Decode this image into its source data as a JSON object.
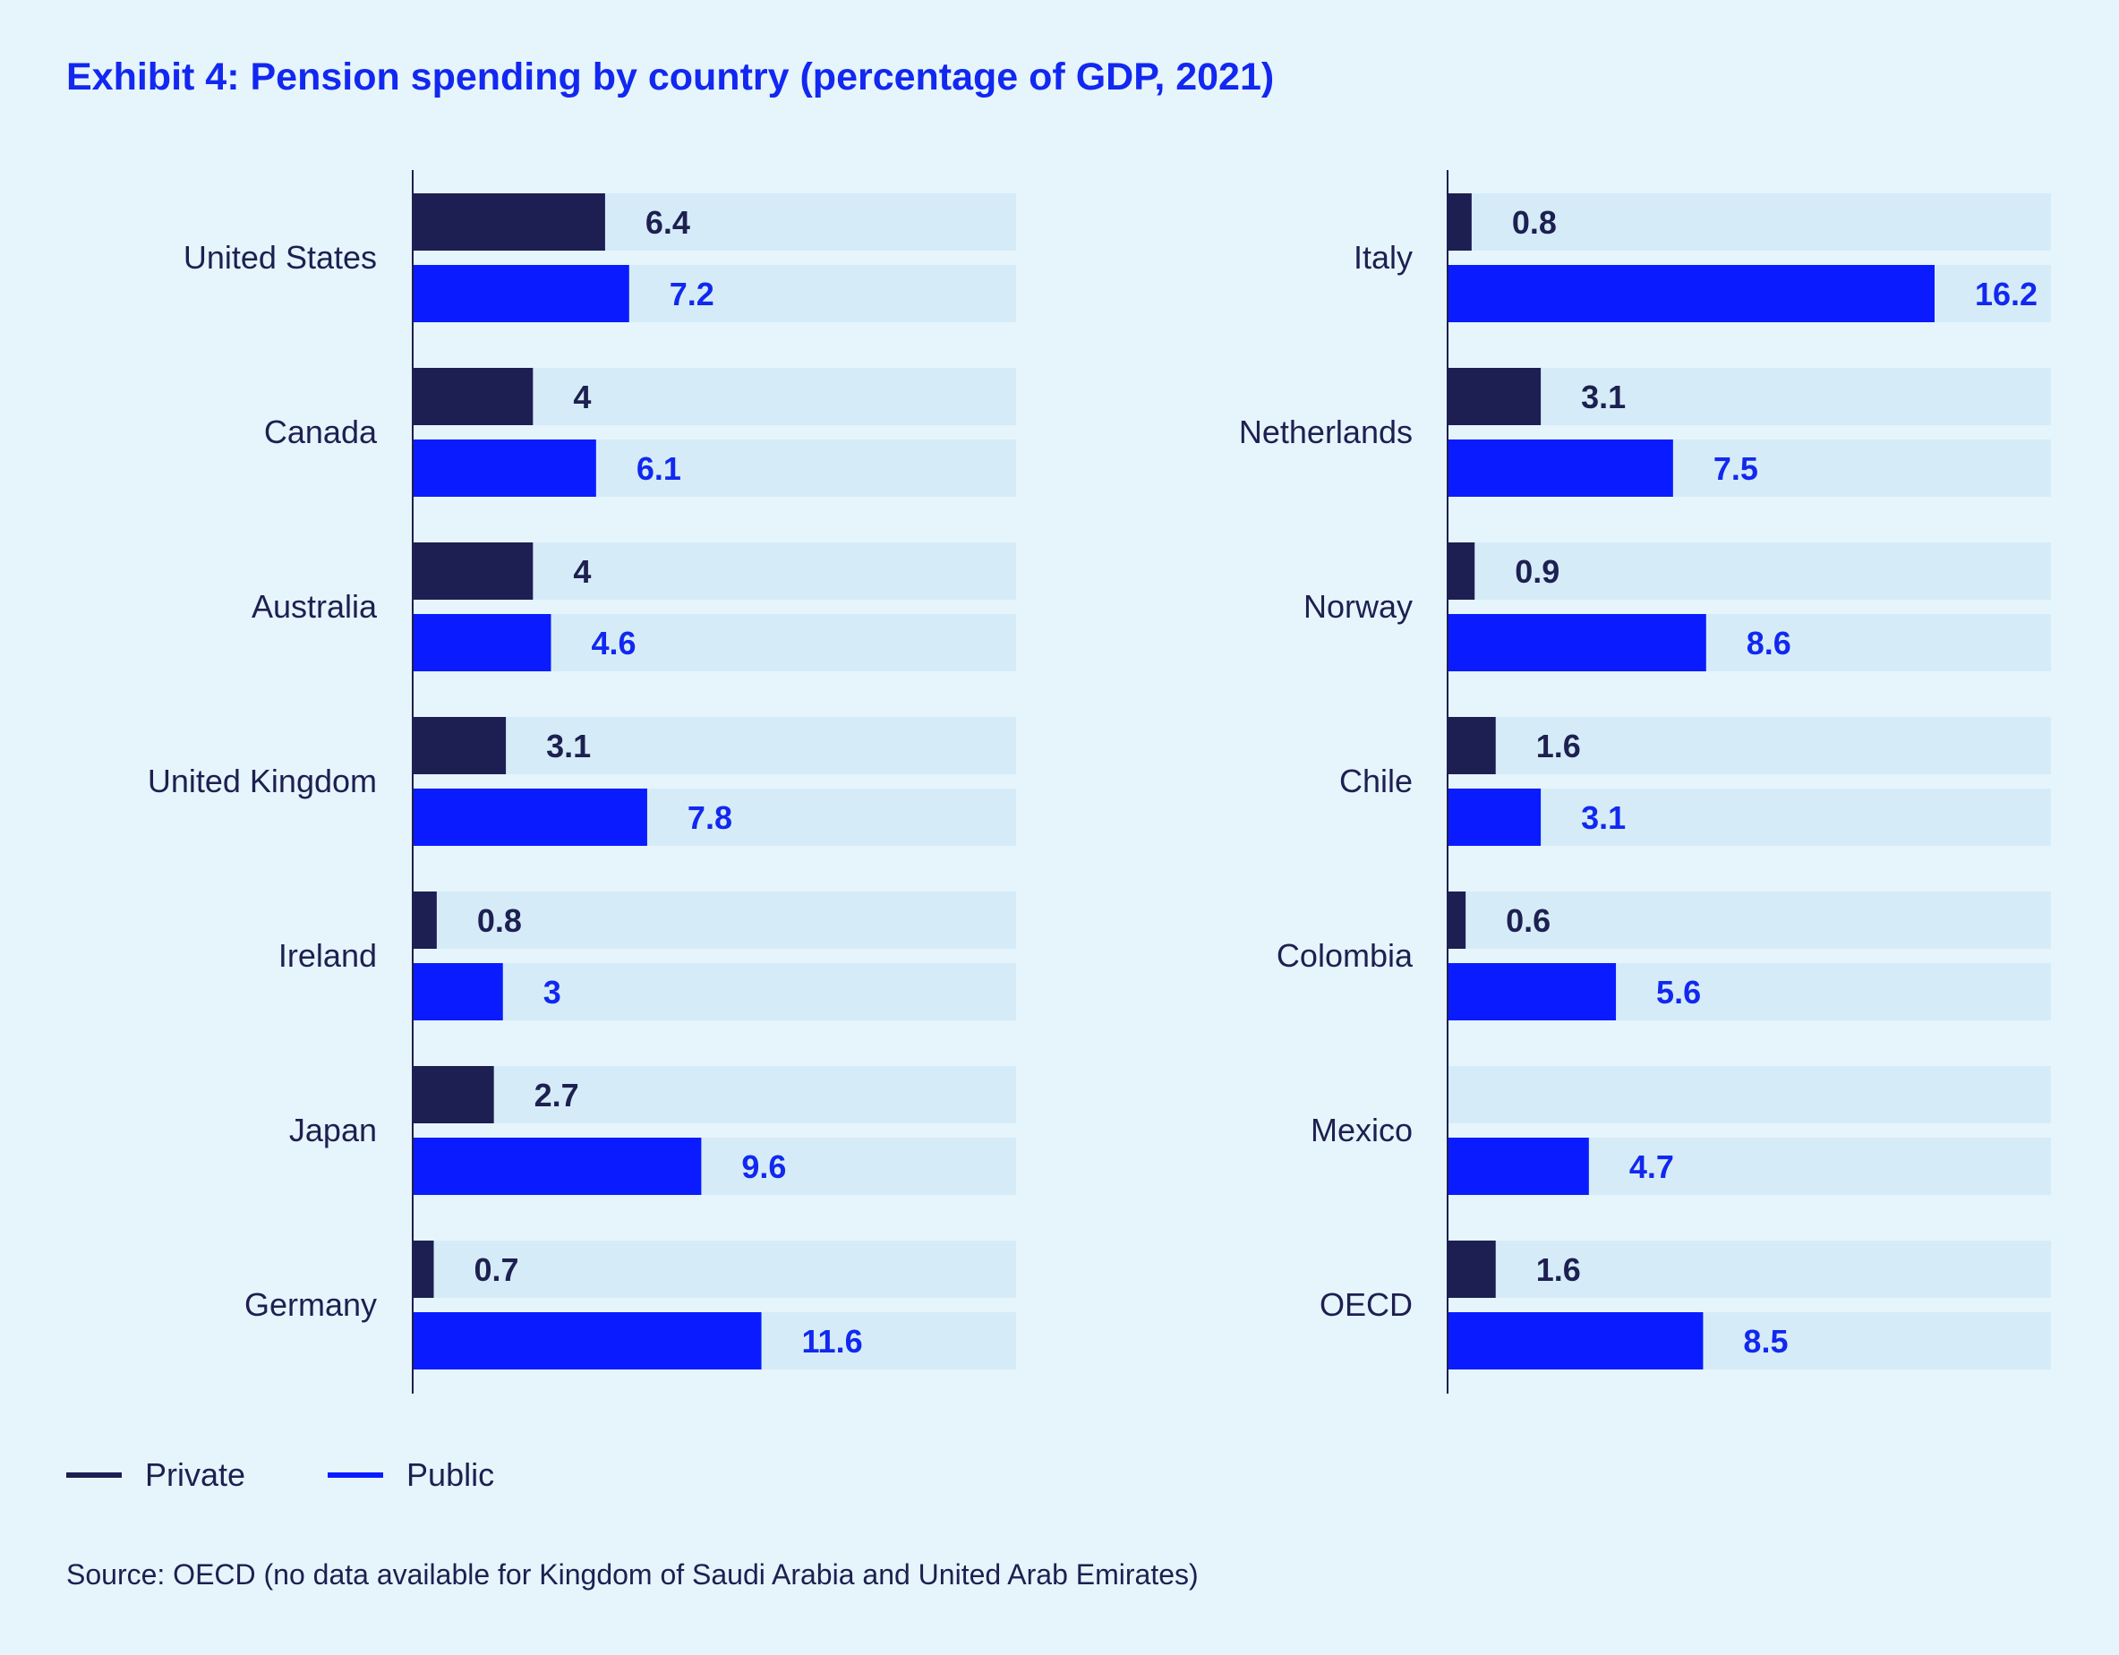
{
  "chart_data": {
    "type": "bar",
    "orientation": "horizontal",
    "title": "Exhibit 4: Pension spending by country (percentage of GDP, 2021)",
    "xlim": [
      0,
      18
    ],
    "colors": {
      "private": "#1d1f52",
      "public": "#0a1cff",
      "track": "#d5ecf8",
      "background": "#e6f4fc"
    },
    "panels": [
      {
        "categories": [
          "United States",
          "Canada",
          "Australia",
          "United Kingdom",
          "Ireland",
          "Japan",
          "Germany"
        ],
        "series": [
          {
            "name": "Private",
            "values": [
              6.4,
              4,
              4,
              3.1,
              0.8,
              2.7,
              0.7
            ]
          },
          {
            "name": "Public",
            "values": [
              7.2,
              6.1,
              4.6,
              7.8,
              3,
              9.6,
              11.6
            ]
          }
        ]
      },
      {
        "categories": [
          "Italy",
          "Netherlands",
          "Norway",
          "Chile",
          "Colombia",
          "Mexico",
          "OECD"
        ],
        "series": [
          {
            "name": "Private",
            "values": [
              0.8,
              3.1,
              0.9,
              1.6,
              0.6,
              null,
              1.6
            ]
          },
          {
            "name": "Public",
            "values": [
              16.2,
              7.5,
              8.6,
              3.1,
              5.6,
              4.7,
              8.5
            ]
          }
        ]
      }
    ],
    "legend": {
      "position": "bottom-left",
      "items": [
        "Private",
        "Public"
      ]
    },
    "source": "Source: OECD (no data available for Kingdom of Saudi Arabia and United Arab Emirates)"
  }
}
